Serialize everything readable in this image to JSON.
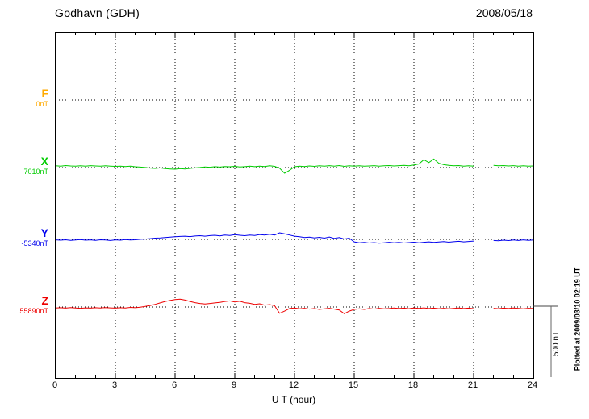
{
  "chart_data": {
    "type": "line",
    "title": "Godhavn (GDH)",
    "date": "2008/05/18",
    "xlabel": "U T (hour)",
    "xlim": [
      0,
      24
    ],
    "xticks": [
      0,
      3,
      6,
      9,
      12,
      15,
      18,
      21,
      24
    ],
    "x_step_hours": 0.25,
    "grid": {
      "vertical_dotted_at": [
        3,
        6,
        9,
        12,
        15,
        18,
        21
      ],
      "baseline_dotted": true
    },
    "scale_bar": {
      "label": "500 nT",
      "nT": 500
    },
    "footnote": "Plotted at 2009/03/10 02:19 UT",
    "series": [
      {
        "name": "F",
        "baseline_label": "0nT",
        "baseline_value_nT": 0,
        "color": "#FFAA00",
        "baseline_frac": 0.194,
        "values": []
      },
      {
        "name": "X",
        "baseline_label": "7010nT",
        "baseline_value_nT": 7010,
        "color": "#00CC00",
        "baseline_frac": 0.39,
        "values": [
          12,
          10,
          14,
          11,
          9,
          12,
          10,
          13,
          11,
          9,
          12,
          10,
          8,
          10,
          7,
          9,
          5,
          3,
          0,
          -4,
          -6,
          -3,
          -8,
          -10,
          -12,
          -8,
          -10,
          -6,
          -3,
          0,
          4,
          2,
          6,
          3,
          7,
          5,
          8,
          4,
          6,
          9,
          6,
          10,
          7,
          12,
          8,
          -5,
          -40,
          -20,
          5,
          10,
          7,
          11,
          8,
          12,
          9,
          13,
          10,
          14,
          8,
          12,
          10,
          12,
          9,
          11,
          13,
          10,
          12,
          14,
          11,
          13,
          15,
          12,
          18,
          25,
          55,
          35,
          60,
          30,
          20,
          15,
          12,
          14,
          10,
          12,
          10,
          null,
          null,
          null,
          15,
          12,
          14,
          11,
          13,
          10,
          12,
          9,
          11
        ]
      },
      {
        "name": "Y",
        "baseline_label": "-5340nT",
        "baseline_value_nT": -5340,
        "color": "#0000EE",
        "baseline_frac": 0.598,
        "values": [
          -4,
          -6,
          -3,
          -7,
          -5,
          -2,
          -6,
          -4,
          -7,
          -3,
          -5,
          -8,
          -4,
          -6,
          -2,
          -5,
          -3,
          0,
          2,
          5,
          8,
          10,
          13,
          15,
          18,
          20,
          22,
          19,
          23,
          25,
          22,
          26,
          28,
          24,
          30,
          27,
          32,
          28,
          25,
          30,
          27,
          33,
          29,
          35,
          30,
          45,
          38,
          30,
          22,
          18,
          12,
          15,
          10,
          14,
          8,
          16,
          6,
          12,
          2,
          8,
          -18,
          -25,
          -22,
          -26,
          -23,
          -27,
          -24,
          -21,
          -25,
          -22,
          -26,
          -23,
          -20,
          -24,
          -21,
          -18,
          -22,
          -19,
          -16,
          -20,
          -17,
          -14,
          -18,
          -15,
          -12,
          null,
          null,
          null,
          -8,
          -10,
          -6,
          -9,
          -5,
          -8,
          -4,
          -7,
          -5
        ]
      },
      {
        "name": "Z",
        "baseline_label": "55890nT",
        "baseline_value_nT": 55890,
        "color": "#EE0000",
        "baseline_frac": 0.794,
        "values": [
          -8,
          -6,
          -9,
          -5,
          -8,
          -10,
          -7,
          -9,
          -6,
          -8,
          -5,
          -7,
          -9,
          -6,
          -8,
          -4,
          -6,
          -2,
          3,
          10,
          18,
          28,
          38,
          45,
          52,
          55,
          48,
          38,
          30,
          24,
          20,
          24,
          28,
          32,
          38,
          42,
          35,
          40,
          30,
          25,
          18,
          22,
          12,
          16,
          8,
          -45,
          -30,
          -12,
          -8,
          -14,
          -10,
          -16,
          -12,
          -18,
          -14,
          -10,
          -16,
          -22,
          -48,
          -30,
          -18,
          -14,
          -18,
          -12,
          -16,
          -10,
          -14,
          -12,
          -8,
          -12,
          -9,
          -13,
          -8,
          -11,
          -7,
          -12,
          -9,
          -13,
          -10,
          -14,
          -11,
          -8,
          -12,
          -9,
          -13,
          null,
          null,
          null,
          -10,
          -13,
          -9,
          -12,
          -8,
          -11,
          -14,
          -10,
          -12
        ]
      }
    ]
  }
}
